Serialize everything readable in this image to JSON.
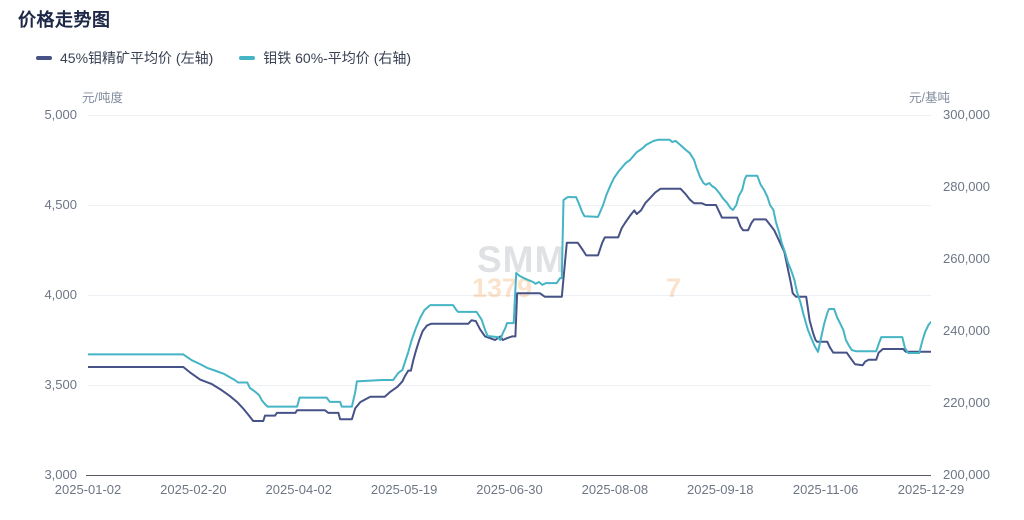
{
  "title": "价格走势图",
  "legend": {
    "items": [
      {
        "label": "45%钼精矿平均价 (左轴)",
        "color": "#475287"
      },
      {
        "label": "钼铁 60%-平均价 (右轴)",
        "color": "#45B4C4"
      }
    ]
  },
  "watermark": {
    "text": "SMM",
    "left_digits": "1379",
    "right_digit": "7"
  },
  "chart_data": {
    "type": "line",
    "grid": "horizontal",
    "legend_position": "top-left",
    "x_axis": {
      "tick_labels": [
        "2025-01-02",
        "2025-02-20",
        "2025-04-02",
        "2025-05-19",
        "2025-06-30",
        "2025-08-08",
        "2025-09-18",
        "2025-11-06",
        "2025-12-29"
      ]
    },
    "left_axis": {
      "unit": "元/吨度",
      "min": 3000,
      "max": 5000,
      "tick_labels": [
        "5,000",
        "4,500",
        "4,000",
        "3,500",
        "3,000"
      ]
    },
    "right_axis": {
      "unit": "元/基吨",
      "min": 200000,
      "max": 300000,
      "tick_labels": [
        "300,000",
        "280,000",
        "260,000",
        "240,000",
        "220,000",
        "200,000"
      ]
    },
    "series": [
      {
        "name": "45%钼精矿平均价",
        "axis": "left",
        "color": "#475287",
        "points": [
          [
            0.0,
            3600
          ],
          [
            0.113,
            3600
          ],
          [
            0.121,
            3570
          ],
          [
            0.133,
            3530
          ],
          [
            0.147,
            3505
          ],
          [
            0.159,
            3470
          ],
          [
            0.168,
            3440
          ],
          [
            0.177,
            3405
          ],
          [
            0.184,
            3370
          ],
          [
            0.191,
            3330
          ],
          [
            0.196,
            3300
          ],
          [
            0.208,
            3300
          ],
          [
            0.21,
            3330
          ],
          [
            0.222,
            3330
          ],
          [
            0.224,
            3345
          ],
          [
            0.246,
            3345
          ],
          [
            0.248,
            3360
          ],
          [
            0.281,
            3360
          ],
          [
            0.285,
            3345
          ],
          [
            0.297,
            3345
          ],
          [
            0.299,
            3310
          ],
          [
            0.313,
            3310
          ],
          [
            0.317,
            3370
          ],
          [
            0.323,
            3405
          ],
          [
            0.329,
            3420
          ],
          [
            0.335,
            3435
          ],
          [
            0.352,
            3435
          ],
          [
            0.358,
            3460
          ],
          [
            0.367,
            3490
          ],
          [
            0.373,
            3520
          ],
          [
            0.376,
            3550
          ],
          [
            0.38,
            3580
          ],
          [
            0.383,
            3580
          ],
          [
            0.386,
            3640
          ],
          [
            0.389,
            3690
          ],
          [
            0.393,
            3750
          ],
          [
            0.397,
            3800
          ],
          [
            0.402,
            3830
          ],
          [
            0.407,
            3840
          ],
          [
            0.451,
            3840
          ],
          [
            0.455,
            3860
          ],
          [
            0.46,
            3855
          ],
          [
            0.465,
            3810
          ],
          [
            0.471,
            3770
          ],
          [
            0.477,
            3760
          ],
          [
            0.483,
            3750
          ],
          [
            0.489,
            3770
          ],
          [
            0.492,
            3750
          ],
          [
            0.497,
            3760
          ],
          [
            0.503,
            3770
          ],
          [
            0.507,
            3770
          ],
          [
            0.509,
            4010
          ],
          [
            0.536,
            4010
          ],
          [
            0.542,
            3990
          ],
          [
            0.562,
            3990
          ],
          [
            0.568,
            4290
          ],
          [
            0.581,
            4290
          ],
          [
            0.587,
            4250
          ],
          [
            0.591,
            4220
          ],
          [
            0.605,
            4220
          ],
          [
            0.61,
            4290
          ],
          [
            0.613,
            4320
          ],
          [
            0.629,
            4320
          ],
          [
            0.633,
            4370
          ],
          [
            0.637,
            4400
          ],
          [
            0.643,
            4440
          ],
          [
            0.648,
            4470
          ],
          [
            0.651,
            4450
          ],
          [
            0.656,
            4470
          ],
          [
            0.661,
            4510
          ],
          [
            0.667,
            4540
          ],
          [
            0.673,
            4570
          ],
          [
            0.679,
            4590
          ],
          [
            0.703,
            4590
          ],
          [
            0.709,
            4560
          ],
          [
            0.714,
            4530
          ],
          [
            0.719,
            4510
          ],
          [
            0.728,
            4510
          ],
          [
            0.733,
            4500
          ],
          [
            0.745,
            4500
          ],
          [
            0.749,
            4460
          ],
          [
            0.752,
            4430
          ],
          [
            0.77,
            4430
          ],
          [
            0.774,
            4380
          ],
          [
            0.777,
            4360
          ],
          [
            0.783,
            4360
          ],
          [
            0.787,
            4400
          ],
          [
            0.79,
            4420
          ],
          [
            0.804,
            4420
          ],
          [
            0.809,
            4390
          ],
          [
            0.814,
            4360
          ],
          [
            0.818,
            4320
          ],
          [
            0.822,
            4280
          ],
          [
            0.826,
            4240
          ],
          [
            0.83,
            4150
          ],
          [
            0.834,
            4060
          ],
          [
            0.836,
            4010
          ],
          [
            0.84,
            3990
          ],
          [
            0.852,
            3990
          ],
          [
            0.856,
            3860
          ],
          [
            0.86,
            3790
          ],
          [
            0.863,
            3750
          ],
          [
            0.865,
            3740
          ],
          [
            0.877,
            3740
          ],
          [
            0.88,
            3710
          ],
          [
            0.884,
            3680
          ],
          [
            0.9,
            3680
          ],
          [
            0.903,
            3660
          ],
          [
            0.906,
            3640
          ],
          [
            0.91,
            3615
          ],
          [
            0.919,
            3610
          ],
          [
            0.922,
            3630
          ],
          [
            0.926,
            3640
          ],
          [
            0.935,
            3640
          ],
          [
            0.938,
            3680
          ],
          [
            0.943,
            3700
          ],
          [
            0.967,
            3700
          ],
          [
            0.97,
            3685
          ],
          [
            1.0,
            3685
          ]
        ]
      },
      {
        "name": "钼铁 60%-平均价",
        "axis": "right",
        "color": "#45B4C4",
        "points": [
          [
            0.0,
            233500
          ],
          [
            0.113,
            233500
          ],
          [
            0.123,
            231900
          ],
          [
            0.133,
            230800
          ],
          [
            0.142,
            229700
          ],
          [
            0.152,
            228900
          ],
          [
            0.161,
            228100
          ],
          [
            0.168,
            227200
          ],
          [
            0.174,
            226400
          ],
          [
            0.178,
            225700
          ],
          [
            0.189,
            225700
          ],
          [
            0.192,
            224200
          ],
          [
            0.199,
            223000
          ],
          [
            0.203,
            222200
          ],
          [
            0.206,
            220800
          ],
          [
            0.21,
            219700
          ],
          [
            0.213,
            219000
          ],
          [
            0.248,
            219000
          ],
          [
            0.251,
            221500
          ],
          [
            0.283,
            221500
          ],
          [
            0.287,
            220300
          ],
          [
            0.299,
            220300
          ],
          [
            0.301,
            219000
          ],
          [
            0.313,
            219000
          ],
          [
            0.317,
            223000
          ],
          [
            0.319,
            226000
          ],
          [
            0.343,
            226300
          ],
          [
            0.35,
            226400
          ],
          [
            0.362,
            226400
          ],
          [
            0.368,
            228300
          ],
          [
            0.373,
            229200
          ],
          [
            0.376,
            231400
          ],
          [
            0.38,
            234200
          ],
          [
            0.384,
            237500
          ],
          [
            0.389,
            240800
          ],
          [
            0.394,
            243600
          ],
          [
            0.399,
            245800
          ],
          [
            0.403,
            246600
          ],
          [
            0.406,
            247200
          ],
          [
            0.433,
            247200
          ],
          [
            0.437,
            245800
          ],
          [
            0.439,
            245300
          ],
          [
            0.461,
            245300
          ],
          [
            0.467,
            243100
          ],
          [
            0.471,
            240300
          ],
          [
            0.474,
            238600
          ],
          [
            0.486,
            238300
          ],
          [
            0.489,
            237500
          ],
          [
            0.492,
            239400
          ],
          [
            0.495,
            240800
          ],
          [
            0.497,
            242200
          ],
          [
            0.505,
            242200
          ],
          [
            0.508,
            256100
          ],
          [
            0.512,
            255300
          ],
          [
            0.517,
            254700
          ],
          [
            0.522,
            254200
          ],
          [
            0.528,
            253600
          ],
          [
            0.531,
            253100
          ],
          [
            0.535,
            253600
          ],
          [
            0.539,
            252800
          ],
          [
            0.543,
            253300
          ],
          [
            0.556,
            253300
          ],
          [
            0.56,
            254700
          ],
          [
            0.562,
            254700
          ],
          [
            0.564,
            276400
          ],
          [
            0.569,
            277200
          ],
          [
            0.579,
            277200
          ],
          [
            0.583,
            275000
          ],
          [
            0.586,
            273100
          ],
          [
            0.589,
            271900
          ],
          [
            0.605,
            271700
          ],
          [
            0.611,
            275000
          ],
          [
            0.615,
            277800
          ],
          [
            0.62,
            280600
          ],
          [
            0.624,
            282500
          ],
          [
            0.629,
            284200
          ],
          [
            0.633,
            285300
          ],
          [
            0.638,
            286700
          ],
          [
            0.643,
            287500
          ],
          [
            0.648,
            288900
          ],
          [
            0.651,
            289700
          ],
          [
            0.655,
            290300
          ],
          [
            0.658,
            290800
          ],
          [
            0.662,
            291700
          ],
          [
            0.666,
            292200
          ],
          [
            0.671,
            292800
          ],
          [
            0.676,
            293100
          ],
          [
            0.69,
            293100
          ],
          [
            0.693,
            292500
          ],
          [
            0.697,
            292800
          ],
          [
            0.704,
            291400
          ],
          [
            0.709,
            290300
          ],
          [
            0.714,
            289400
          ],
          [
            0.719,
            287500
          ],
          [
            0.722,
            285300
          ],
          [
            0.726,
            282800
          ],
          [
            0.73,
            281100
          ],
          [
            0.733,
            280600
          ],
          [
            0.737,
            281100
          ],
          [
            0.74,
            280300
          ],
          [
            0.744,
            279700
          ],
          [
            0.749,
            278300
          ],
          [
            0.753,
            276900
          ],
          [
            0.758,
            275600
          ],
          [
            0.762,
            274200
          ],
          [
            0.765,
            273600
          ],
          [
            0.769,
            275000
          ],
          [
            0.772,
            277500
          ],
          [
            0.776,
            279200
          ],
          [
            0.779,
            282100
          ],
          [
            0.781,
            283100
          ],
          [
            0.794,
            283100
          ],
          [
            0.798,
            280600
          ],
          [
            0.802,
            279200
          ],
          [
            0.806,
            277200
          ],
          [
            0.809,
            275000
          ],
          [
            0.813,
            273600
          ],
          [
            0.816,
            270300
          ],
          [
            0.82,
            267200
          ],
          [
            0.823,
            264400
          ],
          [
            0.827,
            261700
          ],
          [
            0.83,
            259200
          ],
          [
            0.834,
            256900
          ],
          [
            0.838,
            254200
          ],
          [
            0.841,
            250800
          ],
          [
            0.845,
            248100
          ],
          [
            0.849,
            244400
          ],
          [
            0.854,
            240300
          ],
          [
            0.859,
            237500
          ],
          [
            0.862,
            235800
          ],
          [
            0.866,
            234200
          ],
          [
            0.869,
            237500
          ],
          [
            0.873,
            241700
          ],
          [
            0.877,
            245000
          ],
          [
            0.879,
            246100
          ],
          [
            0.885,
            246100
          ],
          [
            0.889,
            243600
          ],
          [
            0.892,
            242200
          ],
          [
            0.896,
            240300
          ],
          [
            0.899,
            237500
          ],
          [
            0.903,
            235800
          ],
          [
            0.906,
            234700
          ],
          [
            0.911,
            234400
          ],
          [
            0.935,
            234400
          ],
          [
            0.938,
            236400
          ],
          [
            0.941,
            238300
          ],
          [
            0.966,
            238300
          ],
          [
            0.969,
            235300
          ],
          [
            0.973,
            233900
          ],
          [
            0.986,
            233900
          ],
          [
            0.99,
            237500
          ],
          [
            0.993,
            239700
          ],
          [
            0.997,
            241700
          ],
          [
            1.0,
            242500
          ]
        ]
      }
    ]
  }
}
